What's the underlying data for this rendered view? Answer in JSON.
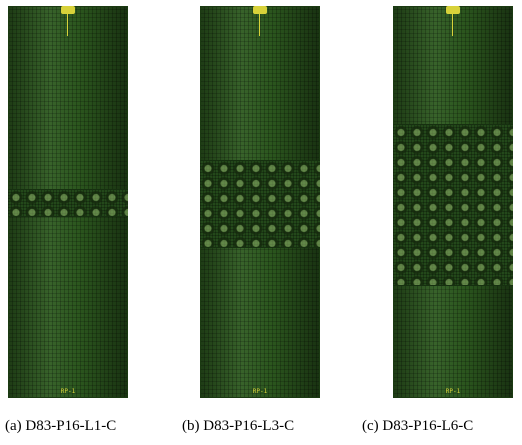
{
  "panels": [
    {
      "caption": "(a) D83-P16-L1-C",
      "rp_label": "RP-1"
    },
    {
      "caption": "(b) D83-P16-L3-C",
      "rp_label": "RP-1"
    },
    {
      "caption": "(c) D83-P16-L6-C",
      "rp_label": "RP-1"
    }
  ],
  "colors": {
    "mesh": "#2d5a1f",
    "reference_point": "#d8d23a"
  }
}
